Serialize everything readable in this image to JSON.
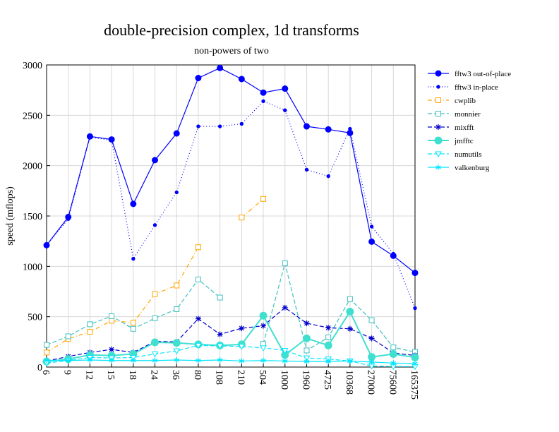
{
  "chart_data": {
    "type": "line",
    "title": "double-precision complex, 1d transforms",
    "subtitle": "non-powers of two",
    "ylabel": "speed (mflops)",
    "xlabel": "",
    "ylim": [
      0,
      3000
    ],
    "yticks": [
      0,
      500,
      1000,
      1500,
      2000,
      2500,
      3000
    ],
    "grid": true,
    "legend_position": "right",
    "categories": [
      "6",
      "9",
      "12",
      "15",
      "18",
      "24",
      "36",
      "80",
      "108",
      "210",
      "504",
      "1000",
      "1960",
      "4725",
      "10368",
      "27000",
      "75600",
      "165375"
    ],
    "series": [
      {
        "name": "fftw3 out-of-place",
        "color": "#0000ff",
        "dash": "",
        "marker": "circle",
        "values": [
          1210,
          1490,
          2290,
          2260,
          1620,
          2055,
          2320,
          2870,
          2970,
          2860,
          2725,
          2765,
          2390,
          2360,
          2325,
          1245,
          1105,
          935
        ]
      },
      {
        "name": "fftw3 in-place",
        "color": "#0000ff",
        "dash": "1,3",
        "marker": "dot",
        "values": [
          1210,
          1470,
          2285,
          2250,
          1075,
          1410,
          1735,
          2390,
          2390,
          2415,
          2640,
          2550,
          1960,
          1895,
          2365,
          1395,
          1125,
          585
        ]
      },
      {
        "name": "cwplib",
        "color": "#ffa500",
        "dash": "6,3,1,3",
        "marker": "square",
        "values": [
          145,
          280,
          350,
          460,
          440,
          725,
          810,
          1190,
          null,
          1485,
          1670,
          null,
          null,
          null,
          null,
          null,
          null,
          null
        ]
      },
      {
        "name": "monnier",
        "color": "#40c0c0",
        "dash": "6,3",
        "marker": "square",
        "values": [
          220,
          305,
          425,
          505,
          380,
          485,
          575,
          870,
          690,
          null,
          230,
          1030,
          165,
          295,
          675,
          465,
          195,
          150
        ]
      },
      {
        "name": "mixfft",
        "color": "#0000cc",
        "dash": "6,3",
        "marker": "star",
        "values": [
          60,
          105,
          145,
          175,
          145,
          255,
          250,
          480,
          325,
          385,
          410,
          590,
          435,
          390,
          380,
          285,
          140,
          115
        ]
      },
      {
        "name": "jmfftc",
        "color": "#40e0d0",
        "dash": "",
        "marker": "bigcircle",
        "values": [
          55,
          80,
          120,
          115,
          130,
          245,
          240,
          225,
          215,
          225,
          510,
          120,
          285,
          215,
          550,
          100,
          130,
          95
        ]
      },
      {
        "name": "numutils",
        "color": "#00e5ff",
        "dash": "6,3",
        "marker": "triangle",
        "values": [
          40,
          65,
          95,
          90,
          95,
          130,
          160,
          215,
          210,
          205,
          190,
          165,
          90,
          80,
          60,
          10,
          5,
          5
        ]
      },
      {
        "name": "valkenburg",
        "color": "#00e5ff",
        "dash": "",
        "marker": "asterisk",
        "values": [
          65,
          65,
          70,
          65,
          65,
          65,
          70,
          65,
          70,
          60,
          65,
          60,
          55,
          55,
          60,
          50,
          40,
          35
        ]
      }
    ]
  }
}
